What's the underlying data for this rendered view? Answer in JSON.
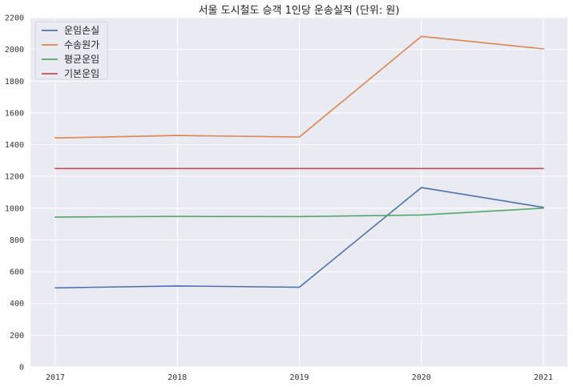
{
  "chart_data": {
    "type": "line",
    "title": "서울 도시철도 승객 1인당 운송실적 (단위: 원)",
    "xlabel": "",
    "ylabel": "",
    "categories": [
      "2017",
      "2018",
      "2019",
      "2020",
      "2021"
    ],
    "ylim": [
      0,
      2200
    ],
    "yticks": [
      "0",
      "200",
      "400",
      "600",
      "800",
      "1000",
      "1200",
      "1400",
      "1600",
      "1800",
      "2000",
      "2200"
    ],
    "grid": true,
    "legend_position": "top-left",
    "series": [
      {
        "name": "운임손실",
        "color": "#4c72b0",
        "values": [
          498,
          510,
          502,
          1130,
          1005
        ]
      },
      {
        "name": "수송원가",
        "color": "#dd8452",
        "values": [
          1442,
          1458,
          1448,
          2082,
          2003
        ]
      },
      {
        "name": "평균운임",
        "color": "#55a868",
        "values": [
          944,
          948,
          947,
          957,
          1000
        ]
      },
      {
        "name": "기본운임",
        "color": "#c44e52",
        "values": [
          1250,
          1250,
          1250,
          1250,
          1250
        ]
      }
    ]
  }
}
